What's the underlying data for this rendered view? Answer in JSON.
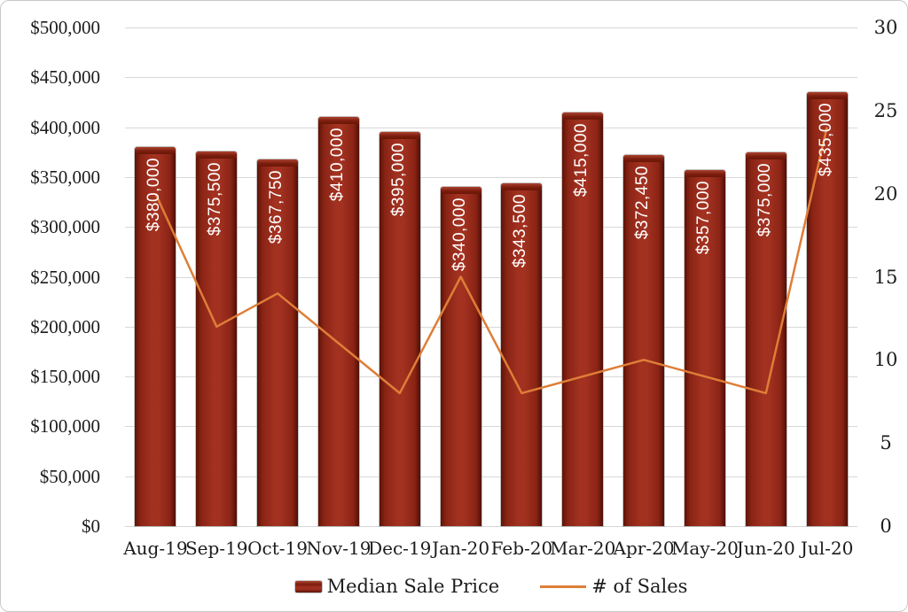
{
  "colors": {
    "bar_fill": "#9a2b1b",
    "bar_edge": "#5c1407",
    "line": "#de7e38",
    "gridline": "#d8d8d8",
    "text": "#1c1c1c",
    "bar_label_text": "#ffffff"
  },
  "chart_data": {
    "type": "bar",
    "subtype": "combo-bar-line-dual-axis",
    "categories": [
      "Aug-19",
      "Sep-19",
      "Oct-19",
      "Nov-19",
      "Dec-19",
      "Jan-20",
      "Feb-20",
      "Mar-20",
      "Apr-20",
      "May-20",
      "Jun-20",
      "Jul-20"
    ],
    "series": [
      {
        "name": "Median Sale Price",
        "type": "bar",
        "axis": "left",
        "values": [
          380000,
          375500,
          367750,
          410000,
          395000,
          340000,
          343500,
          415000,
          372450,
          357000,
          375000,
          435000
        ],
        "labels": [
          "$380,000",
          "$375,500",
          "$367,750",
          "$410,000",
          "$395,000",
          "$340,000",
          "$343,500",
          "$415,000",
          "$372,450",
          "$357,000",
          "$375,000",
          "$435,000"
        ],
        "color": "#9a2b1b"
      },
      {
        "name": "# of Sales",
        "type": "line",
        "axis": "right",
        "values": [
          20,
          12,
          14,
          11,
          8,
          15,
          8,
          9,
          10,
          9,
          8,
          24
        ],
        "color": "#de7e38"
      }
    ],
    "left_axis": {
      "min": 0,
      "max": 500000,
      "step": 50000,
      "tick_labels": [
        "$500,000",
        "$450,000",
        "$400,000",
        "$350,000",
        "$300,000",
        "$250,000",
        "$200,000",
        "$150,000",
        "$100,000",
        "$50,000",
        "$0"
      ]
    },
    "right_axis": {
      "min": 0,
      "max": 30,
      "step": 5,
      "tick_labels": [
        "30",
        "25",
        "20",
        "15",
        "10",
        "5",
        "0"
      ]
    },
    "title": "",
    "xlabel": "",
    "ylabel": "",
    "grid": true,
    "legend_position": "bottom"
  },
  "legend": {
    "bar_label": "Median Sale Price",
    "line_label": "# of Sales"
  }
}
